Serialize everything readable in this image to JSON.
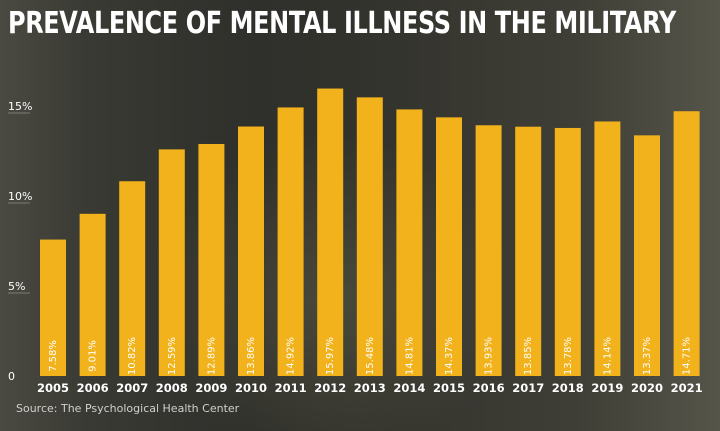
{
  "title": "PREVALENCE OF MENTAL ILLNESS IN THE MILITARY",
  "source": "Source: The Psychological Health Center",
  "colors": {
    "bar": "#f2b21b",
    "text": "#ffffff",
    "grid": "#8a8a80"
  },
  "chart_data": {
    "type": "bar",
    "title": "PREVALENCE OF MENTAL ILLNESS IN THE MILITARY",
    "xlabel": "",
    "ylabel": "",
    "categories": [
      "2005",
      "2006",
      "2007",
      "2008",
      "2009",
      "2010",
      "2011",
      "2012",
      "2013",
      "2014",
      "2015",
      "2016",
      "2017",
      "2018",
      "2019",
      "2020",
      "2021"
    ],
    "values": [
      7.58,
      9.01,
      10.82,
      12.59,
      12.89,
      13.86,
      14.92,
      15.97,
      15.48,
      14.81,
      14.37,
      13.93,
      13.85,
      13.78,
      14.14,
      13.37,
      14.71
    ],
    "value_labels": [
      "7.58%",
      "9.01%",
      "10.82%",
      "12.59%",
      "12.89%",
      "13.86%",
      "14.92%",
      "15.97%",
      "15.48%",
      "14.81%",
      "14.37%",
      "13.93%",
      "13.85%",
      "13.78%",
      "14.14%",
      "13.37%",
      "14.71%"
    ],
    "y_ticks": [
      0,
      5,
      10,
      15
    ],
    "y_tick_labels": [
      "0",
      "5%",
      "10%",
      "15%"
    ],
    "ylim": [
      0,
      17
    ],
    "grid": false,
    "legend": "none"
  }
}
